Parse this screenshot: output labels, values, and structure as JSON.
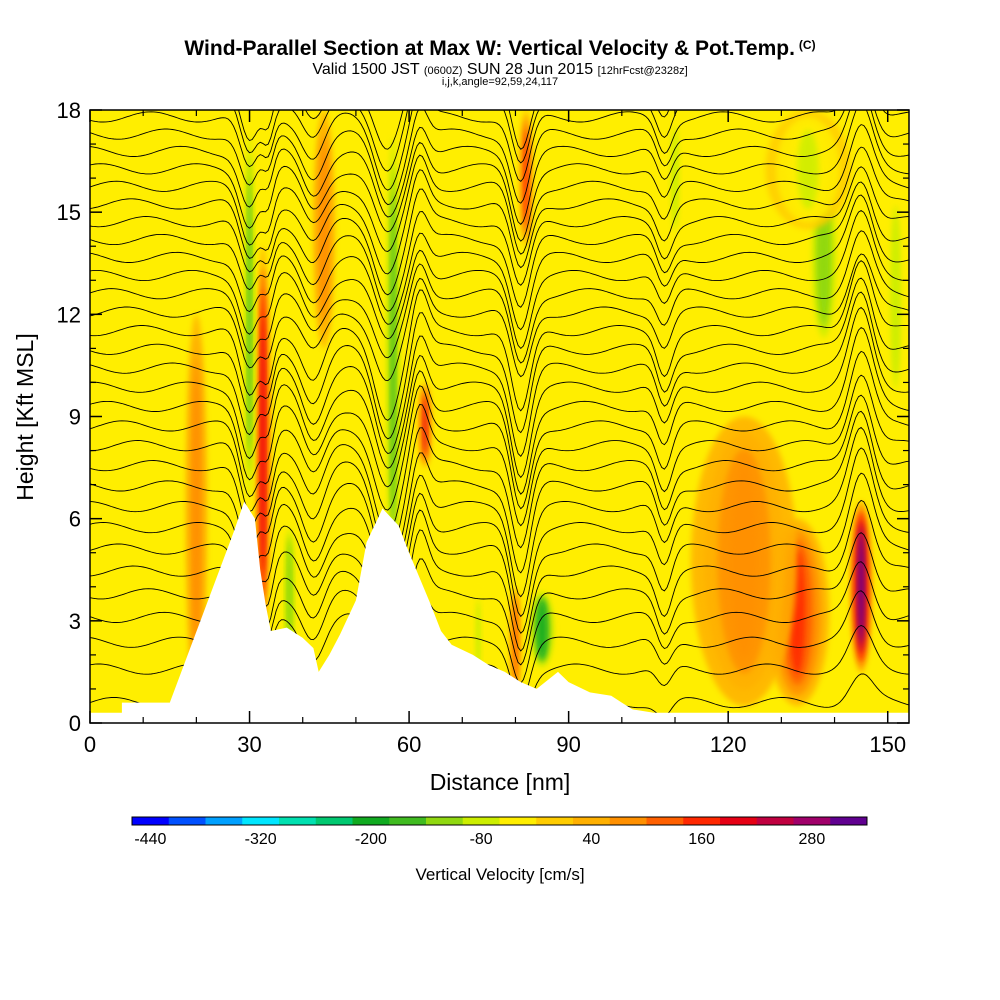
{
  "chart_data": {
    "type": "heatmap",
    "title": "Wind-Parallel Section at Max W: Vertical Velocity & Pot.Temp.",
    "title_mark": "(C)",
    "subtitle": {
      "valid": "Valid 1500 JST",
      "utc": "(0600Z)",
      "date": "SUN 28 Jun 2015",
      "forecast": "[12hrFcst@2328z]"
    },
    "subtitle2": "i,j,k,angle=92,59,24,117",
    "xlabel": "Distance [nm]",
    "ylabel": "Height [Kft MSL]",
    "xlim": [
      0,
      154
    ],
    "ylim": [
      0,
      18
    ],
    "x_ticks": [
      0,
      30,
      60,
      90,
      120,
      150
    ],
    "x_tick_labels": [
      "0",
      "30",
      "60",
      "90",
      "120",
      "150"
    ],
    "y_ticks": [
      0,
      3,
      6,
      9,
      12,
      15,
      18
    ],
    "y_tick_labels": [
      "0",
      "3",
      "6",
      "9",
      "12",
      "15",
      "18"
    ],
    "background_color": "#ffee00",
    "colorbar": {
      "title": "Vertical Velocity [cm/s]",
      "levels": [
        -460,
        -420,
        -380,
        -340,
        -300,
        -260,
        -220,
        -180,
        -140,
        -100,
        -60,
        -20,
        20,
        60,
        100,
        140,
        180,
        220,
        260,
        300,
        340
      ],
      "colors": [
        "#0000ff",
        "#0050ff",
        "#00a0ff",
        "#00e6ff",
        "#00e0b0",
        "#00c870",
        "#10aa20",
        "#40bb20",
        "#90d810",
        "#ccee00",
        "#ffee00",
        "#ffcc00",
        "#ffb000",
        "#ff9000",
        "#ff6000",
        "#ff2800",
        "#e60014",
        "#c00040",
        "#a0006a",
        "#600090"
      ],
      "tick_values": [
        -440,
        -320,
        -200,
        -80,
        40,
        160,
        280
      ],
      "tick_labels": [
        "-440",
        "-320",
        "-200",
        "-80",
        "40",
        "160",
        "280"
      ]
    },
    "terrain": {
      "x": [
        0,
        6,
        6,
        15,
        27,
        29,
        31,
        32,
        33,
        34,
        37,
        40,
        42,
        43,
        45,
        47,
        50,
        52,
        55,
        58,
        60,
        64,
        66,
        68,
        72,
        75,
        78,
        81,
        84,
        88,
        90,
        94,
        98,
        100,
        102,
        106,
        110,
        120,
        125,
        130,
        140,
        146,
        150,
        154
      ],
      "y": [
        0.3,
        0.3,
        0.6,
        0.6,
        5.6,
        6.5,
        6.0,
        4.5,
        3.5,
        2.7,
        2.8,
        2.5,
        2.2,
        1.5,
        2.0,
        2.6,
        3.6,
        5.3,
        6.3,
        5.8,
        5.0,
        3.5,
        2.7,
        2.3,
        2.0,
        1.7,
        1.5,
        1.2,
        1.0,
        1.5,
        1.2,
        0.9,
        0.8,
        0.6,
        0.4,
        0.3,
        0.3,
        0.3,
        0.3,
        0.3,
        0.3,
        0.3,
        0.3,
        0.3
      ]
    },
    "updrafts": [
      {
        "x": 32.5,
        "y0": 2.5,
        "y1": 14.0,
        "w": 1.4,
        "value": 200
      },
      {
        "x": 63.0,
        "y0": 7.5,
        "y1": 10.0,
        "w": 1.3,
        "value": 180
      },
      {
        "x": 82.0,
        "y0": 14.0,
        "y1": 18.0,
        "w": 1.2,
        "value": 150
      },
      {
        "x": 80.0,
        "y0": 0.8,
        "y1": 4.0,
        "w": 1.0,
        "value": 120
      },
      {
        "x": 145.0,
        "y0": 1.5,
        "y1": 6.5,
        "w": 2.0,
        "value": 300
      },
      {
        "x": 133.0,
        "y0": 0.5,
        "y1": 6.0,
        "w": 6.0,
        "value": 160
      },
      {
        "x": 20.0,
        "y0": 0.5,
        "y1": 12.0,
        "w": 2.0,
        "value": 80
      },
      {
        "x": 44.0,
        "y0": 11.0,
        "y1": 18.0,
        "w": 2.0,
        "value": 80
      },
      {
        "x": 123.0,
        "y0": 0.5,
        "y1": 9.0,
        "w": 10.0,
        "value": 80
      }
    ],
    "downdrafts": [
      {
        "x": 30.0,
        "y0": 6.0,
        "y1": 18.0,
        "w": 1.2,
        "value": -180
      },
      {
        "x": 37.5,
        "y0": 1.5,
        "y1": 6.0,
        "w": 1.2,
        "value": -140
      },
      {
        "x": 57.0,
        "y0": 3.5,
        "y1": 18.0,
        "w": 1.6,
        "value": -180
      },
      {
        "x": 85.0,
        "y0": 1.5,
        "y1": 4.0,
        "w": 3.0,
        "value": -200
      },
      {
        "x": 73.0,
        "y0": 1.0,
        "y1": 4.0,
        "w": 1.0,
        "value": -100
      },
      {
        "x": 138.0,
        "y0": 11.0,
        "y1": 16.5,
        "w": 3.0,
        "value": -140
      },
      {
        "x": 151.5,
        "y0": 9.0,
        "y1": 16.0,
        "w": 2.0,
        "value": -100
      },
      {
        "x": 110.0,
        "y0": 14.0,
        "y1": 18.0,
        "w": 1.5,
        "value": -90
      },
      {
        "x": 135.0,
        "y0": 14.5,
        "y1": 18.0,
        "w": 8.0,
        "value": -80
      }
    ],
    "theta_contours": {
      "count": 32,
      "y_bottom": 0.6,
      "y_top": 18.8,
      "perturbations": [
        {
          "x": 30.0,
          "amp": -2.0,
          "w": 2.5
        },
        {
          "x": 33.5,
          "amp": -1.2,
          "w": 1.5
        },
        {
          "x": 42.0,
          "amp": -1.5,
          "w": 3.0
        },
        {
          "x": 56.0,
          "amp": -2.5,
          "w": 3.5
        },
        {
          "x": 62.0,
          "amp": 1.2,
          "w": 2.0
        },
        {
          "x": 81.0,
          "amp": -2.5,
          "w": 2.5
        },
        {
          "x": 108.0,
          "amp": -1.2,
          "w": 2.0
        },
        {
          "x": 145.0,
          "amp": 2.2,
          "w": 3.0
        }
      ]
    }
  }
}
